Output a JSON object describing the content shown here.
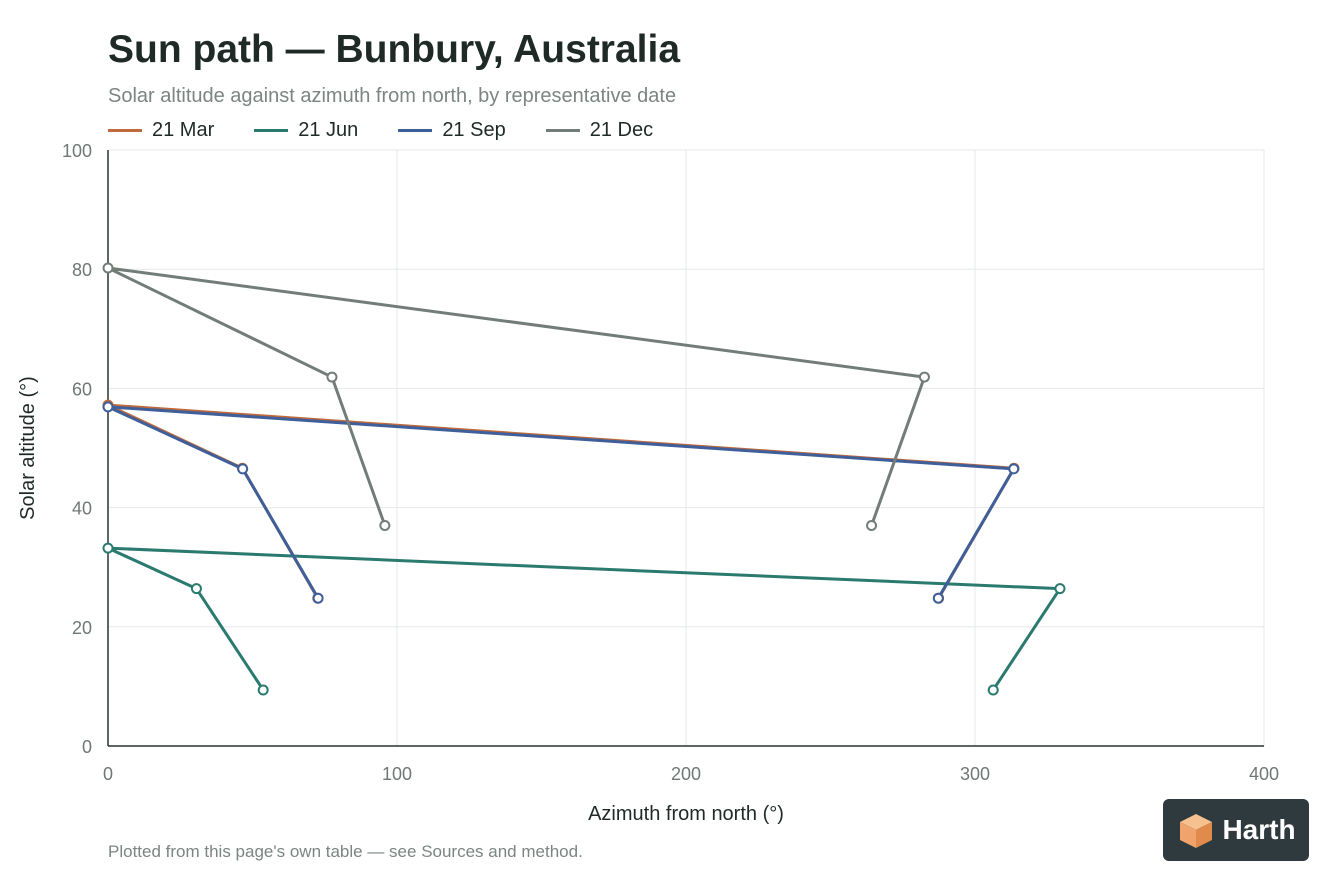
{
  "header": {
    "title": "Sun path — Bunbury, Australia",
    "subtitle": "Solar altitude against azimuth from north, by representative date"
  },
  "footnote": "Plotted from this page's own table — see Sources and method.",
  "logo": {
    "text": "Harth",
    "icon": "cube-logo-icon",
    "color": "#f0a46b"
  },
  "chart_data": {
    "type": "line",
    "xlabel": "Azimuth from north (°)",
    "ylabel": "Solar altitude (°)",
    "xlim": [
      0,
      400
    ],
    "ylim": [
      0,
      100
    ],
    "xticks": [
      0,
      100,
      200,
      300,
      400
    ],
    "yticks": [
      0,
      20,
      40,
      60,
      80,
      100
    ],
    "grid": true,
    "legend_position": "top-left",
    "series": [
      {
        "name": "21 Mar",
        "color": "#c0693a",
        "x": [
          72.6,
          46.5,
          0.0,
          313.5,
          287.4
        ],
        "y": [
          24.8,
          46.6,
          57.2,
          46.6,
          24.8
        ]
      },
      {
        "name": "21 Jun",
        "color": "#2b7a6f",
        "x": [
          53.7,
          30.6,
          0.0,
          329.4,
          306.3
        ],
        "y": [
          9.4,
          26.4,
          33.2,
          26.4,
          9.4
        ]
      },
      {
        "name": "21 Sep",
        "color": "#3f5f9a",
        "x": [
          72.7,
          46.6,
          0.0,
          313.4,
          287.3
        ],
        "y": [
          24.8,
          46.5,
          56.9,
          46.5,
          24.8
        ]
      },
      {
        "name": "21 Dec",
        "color": "#737d78",
        "x": [
          95.8,
          77.5,
          0.0,
          282.5,
          264.2
        ],
        "y": [
          37.0,
          61.9,
          80.2,
          61.9,
          37.0
        ]
      }
    ]
  }
}
